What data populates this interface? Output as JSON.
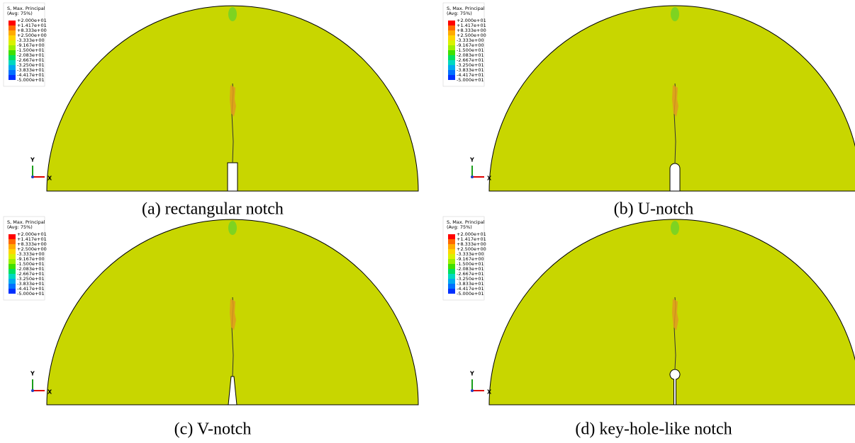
{
  "legend": {
    "title": "S, Max. Principal",
    "subtitle": "(Avg: 75%)",
    "values": [
      "+2.000e+01",
      "+1.417e+01",
      "+8.333e+00",
      "+2.500e+00",
      "-3.333e+00",
      "-9.167e+00",
      "-1.500e+01",
      "-2.083e+01",
      "-2.667e+01",
      "-3.250e+01",
      "-3.833e+01",
      "-4.417e+01",
      "-5.000e+01"
    ]
  },
  "axes": {
    "y": "Y",
    "x": "X"
  },
  "panels": [
    {
      "caption": "(a) rectangular notch"
    },
    {
      "caption": "(b) U-notch"
    },
    {
      "caption": "(c) V-notch"
    },
    {
      "caption": "(d) key-hole-like notch"
    }
  ]
}
